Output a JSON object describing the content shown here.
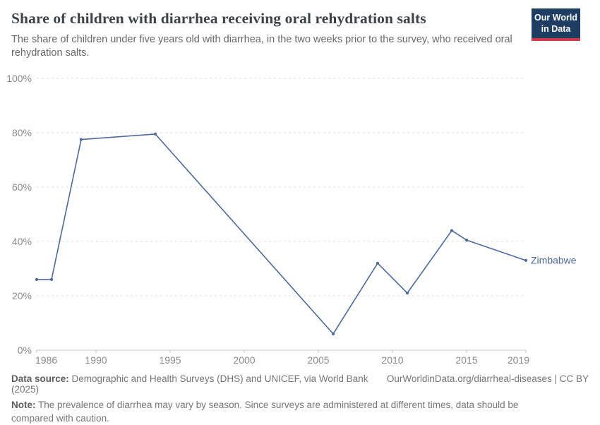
{
  "header": {
    "title": "Share of children with diarrhea receiving oral rehydration salts",
    "subtitle": "The share of children under five years old with diarrhea, in the two weeks prior to the survey, who received oral rehydration salts.",
    "logo": {
      "line1": "Our World",
      "line2": "in Data",
      "bg_color": "#1d3d63",
      "accent_color": "#cf3a47"
    }
  },
  "chart_data": {
    "type": "line",
    "title": "Share of children with diarrhea receiving oral rehydration salts",
    "xlabel": "",
    "ylabel": "",
    "xlim": [
      1986,
      2019
    ],
    "ylim": [
      0,
      100
    ],
    "grid": "horizontal-dashed",
    "x_ticks": [
      1986,
      1990,
      1995,
      2000,
      2005,
      2010,
      2015,
      2019
    ],
    "y_ticks": [
      0,
      20,
      40,
      60,
      80,
      100
    ],
    "y_tick_suffix": "%",
    "legend_position": "end-of-line-label",
    "series": [
      {
        "name": "Zimbabwe",
        "color": "#4c6a9c",
        "points": [
          [
            1986,
            26
          ],
          [
            1987,
            26
          ],
          [
            1989,
            77.5
          ],
          [
            1994,
            79.5
          ],
          [
            2006,
            6
          ],
          [
            2009,
            32
          ],
          [
            2011,
            21
          ],
          [
            2014,
            44
          ],
          [
            2015,
            40.5
          ],
          [
            2019,
            33
          ]
        ]
      }
    ]
  },
  "footer": {
    "source_label": "Data source:",
    "source_text": " Demographic and Health Surveys (DHS) and UNICEF, via World Bank (2025)",
    "attribution": "OurWorldinData.org/diarrheal-diseases | CC BY",
    "note_label": "Note:",
    "note_text": " The prevalence of diarrhea may vary by season. Since surveys are administered at different times, data should be compared with caution."
  }
}
